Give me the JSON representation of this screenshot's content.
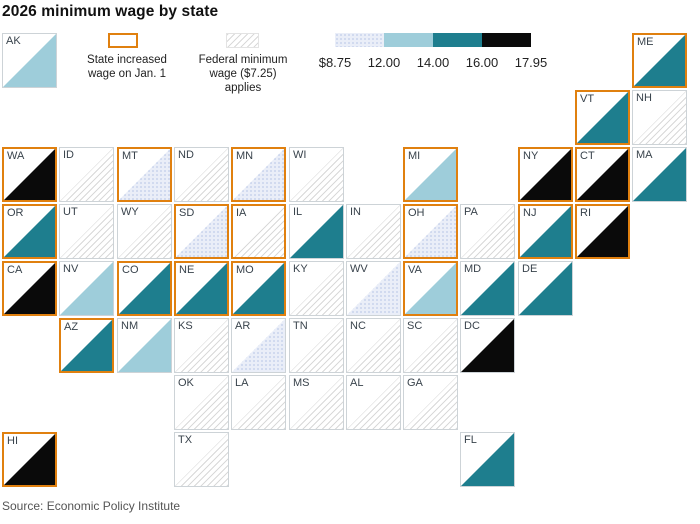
{
  "title": "2026 minimum wage by state",
  "source": "Source: Economic Policy Institute",
  "legend": {
    "increase_label": "State increased\nwage on Jan. 1",
    "federal_label": "Federal minimum\nwage ($7.25) applies",
    "scale_ticks": [
      "$8.75",
      "12.00",
      "14.00",
      "16.00",
      "17.95"
    ]
  },
  "colors": {
    "orange_border": "#e0800f",
    "tile_border": "#cdd3d7",
    "hatch_line": "#d9d9d9",
    "categories": {
      "8.75-12.00": "#eaeef8",
      "12.00-14.00": "#9ecdda",
      "14.00-16.00": "#1e7e8e",
      "16.00-17.95": "#0a0a0a"
    }
  },
  "chart_data": {
    "type": "heatmap",
    "subtype": "state-tile-grid-map",
    "title": "2026 minimum wage by state",
    "legend_bins": [
      "$8.75",
      "12.00",
      "14.00",
      "16.00",
      "17.95"
    ],
    "bin_colors": [
      "#eaeef8",
      "#9ecdda",
      "#1e7e8e",
      "#0a0a0a"
    ],
    "federal_pattern": "gray diagonal hatch = Federal minimum wage ($7.25) applies",
    "increase_marker": "orange tile border = State increased wage on Jan. 1",
    "states": [
      {
        "abbr": "AK",
        "row": 0,
        "col": 0,
        "category": "12.00-14.00",
        "increased_jan1": false
      },
      {
        "abbr": "ME",
        "row": 0,
        "col": 11,
        "category": "14.00-16.00",
        "increased_jan1": true
      },
      {
        "abbr": "VT",
        "row": 1,
        "col": 10,
        "category": "14.00-16.00",
        "increased_jan1": true
      },
      {
        "abbr": "NH",
        "row": 1,
        "col": 11,
        "category": "federal",
        "increased_jan1": false
      },
      {
        "abbr": "WA",
        "row": 2,
        "col": 0,
        "category": "16.00-17.95",
        "increased_jan1": true
      },
      {
        "abbr": "ID",
        "row": 2,
        "col": 1,
        "category": "federal",
        "increased_jan1": false
      },
      {
        "abbr": "MT",
        "row": 2,
        "col": 2,
        "category": "8.75-12.00",
        "increased_jan1": true
      },
      {
        "abbr": "ND",
        "row": 2,
        "col": 3,
        "category": "federal",
        "increased_jan1": false
      },
      {
        "abbr": "MN",
        "row": 2,
        "col": 4,
        "category": "8.75-12.00",
        "increased_jan1": true
      },
      {
        "abbr": "WI",
        "row": 2,
        "col": 5,
        "category": "federal",
        "increased_jan1": false
      },
      {
        "abbr": "MI",
        "row": 2,
        "col": 7,
        "category": "12.00-14.00",
        "increased_jan1": true
      },
      {
        "abbr": "NY",
        "row": 2,
        "col": 9,
        "category": "16.00-17.95",
        "increased_jan1": true
      },
      {
        "abbr": "CT",
        "row": 2,
        "col": 10,
        "category": "16.00-17.95",
        "increased_jan1": true
      },
      {
        "abbr": "MA",
        "row": 2,
        "col": 11,
        "category": "14.00-16.00",
        "increased_jan1": false
      },
      {
        "abbr": "OR",
        "row": 3,
        "col": 0,
        "category": "14.00-16.00",
        "increased_jan1": true
      },
      {
        "abbr": "UT",
        "row": 3,
        "col": 1,
        "category": "federal",
        "increased_jan1": false
      },
      {
        "abbr": "WY",
        "row": 3,
        "col": 2,
        "category": "federal",
        "increased_jan1": false
      },
      {
        "abbr": "SD",
        "row": 3,
        "col": 3,
        "category": "8.75-12.00",
        "increased_jan1": true
      },
      {
        "abbr": "IA",
        "row": 3,
        "col": 4,
        "category": "federal",
        "increased_jan1": true
      },
      {
        "abbr": "IL",
        "row": 3,
        "col": 5,
        "category": "14.00-16.00",
        "increased_jan1": false
      },
      {
        "abbr": "IN",
        "row": 3,
        "col": 6,
        "category": "federal",
        "increased_jan1": false
      },
      {
        "abbr": "OH",
        "row": 3,
        "col": 7,
        "category": "8.75-12.00",
        "increased_jan1": true
      },
      {
        "abbr": "PA",
        "row": 3,
        "col": 8,
        "category": "federal",
        "increased_jan1": false
      },
      {
        "abbr": "NJ",
        "row": 3,
        "col": 9,
        "category": "14.00-16.00",
        "increased_jan1": true
      },
      {
        "abbr": "RI",
        "row": 3,
        "col": 10,
        "category": "16.00-17.95",
        "increased_jan1": true
      },
      {
        "abbr": "CA",
        "row": 4,
        "col": 0,
        "category": "16.00-17.95",
        "increased_jan1": true
      },
      {
        "abbr": "NV",
        "row": 4,
        "col": 1,
        "category": "12.00-14.00",
        "increased_jan1": false
      },
      {
        "abbr": "CO",
        "row": 4,
        "col": 2,
        "category": "14.00-16.00",
        "increased_jan1": true
      },
      {
        "abbr": "NE",
        "row": 4,
        "col": 3,
        "category": "14.00-16.00",
        "increased_jan1": true
      },
      {
        "abbr": "MO",
        "row": 4,
        "col": 4,
        "category": "14.00-16.00",
        "increased_jan1": true
      },
      {
        "abbr": "KY",
        "row": 4,
        "col": 5,
        "category": "federal",
        "increased_jan1": false
      },
      {
        "abbr": "WV",
        "row": 4,
        "col": 6,
        "category": "8.75-12.00",
        "increased_jan1": false
      },
      {
        "abbr": "VA",
        "row": 4,
        "col": 7,
        "category": "12.00-14.00",
        "increased_jan1": true
      },
      {
        "abbr": "MD",
        "row": 4,
        "col": 8,
        "category": "14.00-16.00",
        "increased_jan1": false
      },
      {
        "abbr": "DE",
        "row": 4,
        "col": 9,
        "category": "14.00-16.00",
        "increased_jan1": false
      },
      {
        "abbr": "AZ",
        "row": 5,
        "col": 1,
        "category": "14.00-16.00",
        "increased_jan1": true
      },
      {
        "abbr": "NM",
        "row": 5,
        "col": 2,
        "category": "12.00-14.00",
        "increased_jan1": false
      },
      {
        "abbr": "KS",
        "row": 5,
        "col": 3,
        "category": "federal",
        "increased_jan1": false
      },
      {
        "abbr": "AR",
        "row": 5,
        "col": 4,
        "category": "8.75-12.00",
        "increased_jan1": false
      },
      {
        "abbr": "TN",
        "row": 5,
        "col": 5,
        "category": "federal",
        "increased_jan1": false
      },
      {
        "abbr": "NC",
        "row": 5,
        "col": 6,
        "category": "federal",
        "increased_jan1": false
      },
      {
        "abbr": "SC",
        "row": 5,
        "col": 7,
        "category": "federal",
        "increased_jan1": false
      },
      {
        "abbr": "DC",
        "row": 5,
        "col": 8,
        "category": "16.00-17.95",
        "increased_jan1": false
      },
      {
        "abbr": "OK",
        "row": 6,
        "col": 3,
        "category": "federal",
        "increased_jan1": false
      },
      {
        "abbr": "LA",
        "row": 6,
        "col": 4,
        "category": "federal",
        "increased_jan1": false
      },
      {
        "abbr": "MS",
        "row": 6,
        "col": 5,
        "category": "federal",
        "increased_jan1": false
      },
      {
        "abbr": "AL",
        "row": 6,
        "col": 6,
        "category": "federal",
        "increased_jan1": false
      },
      {
        "abbr": "GA",
        "row": 6,
        "col": 7,
        "category": "federal",
        "increased_jan1": false
      },
      {
        "abbr": "HI",
        "row": 7,
        "col": 0,
        "category": "16.00-17.95",
        "increased_jan1": true
      },
      {
        "abbr": "TX",
        "row": 7,
        "col": 3,
        "category": "federal",
        "increased_jan1": false
      },
      {
        "abbr": "FL",
        "row": 7,
        "col": 8,
        "category": "14.00-16.00",
        "increased_jan1": false
      }
    ]
  }
}
